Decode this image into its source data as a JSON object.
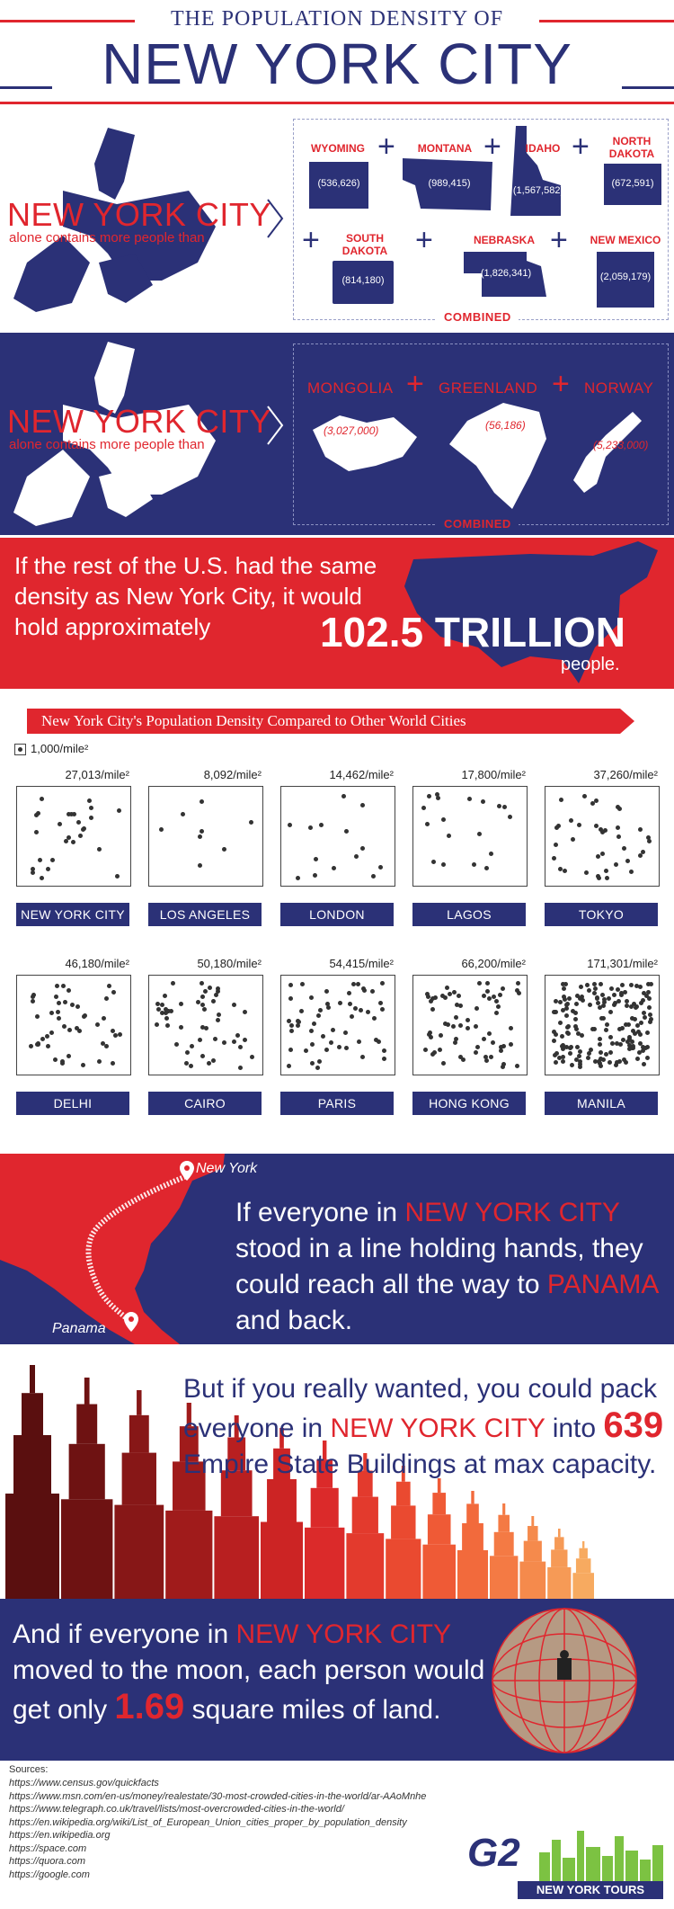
{
  "header": {
    "line1": "THE POPULATION DENSITY OF",
    "line2": "NEW YORK CITY"
  },
  "compare_states": {
    "title": "NEW YORK CITY",
    "subtitle": "alone contains more people than",
    "combined_label": "COMBINED",
    "items": [
      {
        "name": "WYOMING",
        "value": "(536,626)"
      },
      {
        "name": "MONTANA",
        "value": "(989,415)"
      },
      {
        "name": "IDAHO",
        "value": "(1,567,582)"
      },
      {
        "name": "NORTH DAKOTA",
        "value": "(672,591)"
      },
      {
        "name": "SOUTH DAKOTA",
        "value": "(814,180)"
      },
      {
        "name": "NEBRASKA",
        "value": "(1,826,341)"
      },
      {
        "name": "NEW MEXICO",
        "value": "(2,059,179)"
      }
    ]
  },
  "compare_countries": {
    "title": "NEW YORK CITY",
    "subtitle": "alone contains more people than",
    "combined_label": "COMBINED",
    "items": [
      {
        "name": "MONGOLIA",
        "value": "(3,027,000)"
      },
      {
        "name": "GREENLAND",
        "value": "(56,186)"
      },
      {
        "name": "NORWAY",
        "value": "(5,233,000)"
      }
    ]
  },
  "us_density": {
    "text": "If the rest of the U.S. had the same density as New York City, it would hold approximately",
    "big": "102.5 TRILLION",
    "unit": "people."
  },
  "density": {
    "title": "New York City's Population Density Compared to Other World Cities",
    "legend": "1,000/mile²",
    "cities": [
      {
        "name": "NEW YORK CITY",
        "density": "27,013/mile²",
        "value": 27013
      },
      {
        "name": "LOS ANGELES",
        "density": "8,092/mile²",
        "value": 8092
      },
      {
        "name": "LONDON",
        "density": "14,462/mile²",
        "value": 14462
      },
      {
        "name": "LAGOS",
        "density": "17,800/mile²",
        "value": 17800
      },
      {
        "name": "TOKYO",
        "density": "37,260/mile²",
        "value": 37260
      },
      {
        "name": "DELHI",
        "density": "46,180/mile²",
        "value": 46180
      },
      {
        "name": "CAIRO",
        "density": "50,180/mile²",
        "value": 50180
      },
      {
        "name": "PARIS",
        "density": "54,415/mile²",
        "value": 54415
      },
      {
        "name": "HONG KONG",
        "density": "66,200/mile²",
        "value": 66200
      },
      {
        "name": "MANILA",
        "density": "171,301/mile²",
        "value": 171301
      }
    ]
  },
  "panama": {
    "map_label_ny": "New York",
    "map_label_panama": "Panama",
    "text_a": "If everyone in ",
    "hl1": "NEW YORK CITY",
    "text_b": " stood in a line holding hands, they could reach all the way to ",
    "hl2": "PANAMA",
    "text_c": " and back."
  },
  "empire": {
    "text_a": "But if you really wanted, you could pack everyone in ",
    "hl1": "NEW YORK CITY",
    "text_b": " into ",
    "num": "639",
    "text_c": " Empire State Buildings at max capacity."
  },
  "moon": {
    "text_a": "And if everyone in ",
    "hl1": "NEW YORK CITY",
    "text_b": " moved to the moon, each person would get only ",
    "num": "1.69",
    "text_c": " square miles of land."
  },
  "sources": {
    "label": "Sources:",
    "items": [
      "https://www.census.gov/quickfacts",
      "https://www.msn.com/en-us/money/realestate/30-most-crowded-cities-in-the-world/ar-AAoMnhe",
      "https://www.telegraph.co.uk/travel/lists/most-overcrowded-cities-in-the-world/",
      "https://en.wikipedia.org/wiki/List_of_European_Union_cities_proper_by_population_density",
      "https://en.wikipedia.org",
      "https://space.com",
      "https://quora.com",
      "https://google.com"
    ]
  },
  "logo": {
    "mark": "G2",
    "text": "NEW YORK TOURS"
  },
  "colors": {
    "navy": "#2b3177",
    "red": "#e0262e"
  }
}
